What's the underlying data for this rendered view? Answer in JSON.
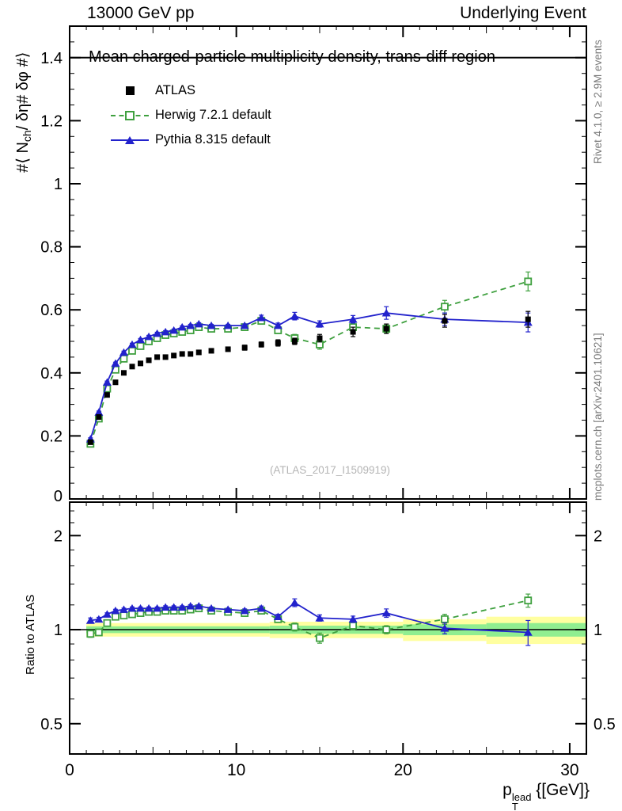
{
  "page": {
    "header_left": "13000 GeV pp",
    "header_right": "Underlying Event",
    "watermark": "(ATLAS_2017_I1509919)",
    "right_label_top": "Rivet 4.1.0, ≥ 2.9M events",
    "right_label_bottom": "mcplots.cern.ch [arXiv:2401.10621]"
  },
  "axes": {
    "y_label_main": {
      "pre": "#⟨ N",
      "sub": "ch",
      "post": "/ δη# δφ #⟩"
    },
    "y_label_ratio": "Ratio to ATLAS",
    "x_label": {
      "pre": "p",
      "sup": "lead",
      "sub": "T",
      "post": " {[GeV]}"
    }
  },
  "chart_data": {
    "type": "line",
    "title": "Mean charged-particle multiplicity density, trans-diff region",
    "xlabel": "p_T^lead {[GeV]}",
    "ylabel": "#⟨ N_ch / δη# δφ #⟩",
    "ratio_label": "Ratio to ATLAS",
    "xlim": [
      0,
      31
    ],
    "ylim": [
      0,
      1.5
    ],
    "ratio_ylim": [
      0.4,
      2.56
    ],
    "ratio_scale": "log",
    "grid": false,
    "legend_position": "top-left-inside",
    "xticks": {
      "values": [
        0,
        10,
        20,
        30
      ],
      "labels": [
        "0",
        "10",
        "20",
        "30"
      ]
    },
    "yticks": {
      "values": [
        0,
        0.2,
        0.4,
        0.6,
        0.8,
        1.0,
        1.2,
        1.4
      ],
      "labels": [
        "0",
        "0.2",
        "0.4",
        "0.6",
        "0.8",
        "1",
        "1.2",
        "1.4"
      ]
    },
    "ratio_yticks": {
      "values": [
        0.5,
        1,
        2
      ],
      "labels": [
        "0.5",
        "1",
        "2"
      ]
    },
    "x": [
      1.25,
      1.75,
      2.25,
      2.75,
      3.25,
      3.75,
      4.25,
      4.75,
      5.25,
      5.75,
      6.25,
      6.75,
      7.25,
      7.75,
      8.5,
      9.5,
      10.5,
      11.5,
      12.5,
      13.5,
      15,
      17,
      19,
      22.5,
      27.5
    ],
    "series": [
      {
        "name": "ATLAS",
        "color": "#000000",
        "marker": "filled-square",
        "line": "none",
        "values": [
          0.18,
          0.26,
          0.33,
          0.37,
          0.4,
          0.42,
          0.43,
          0.44,
          0.45,
          0.45,
          0.455,
          0.46,
          0.46,
          0.465,
          0.47,
          0.475,
          0.48,
          0.49,
          0.495,
          0.5,
          0.51,
          0.53,
          0.54,
          0.565,
          0.57
        ],
        "errors": [
          0.005,
          0.005,
          0.005,
          0.005,
          0.005,
          0.005,
          0.005,
          0.005,
          0.005,
          0.005,
          0.005,
          0.005,
          0.005,
          0.005,
          0.005,
          0.005,
          0.008,
          0.008,
          0.01,
          0.01,
          0.012,
          0.015,
          0.015,
          0.02,
          0.025
        ]
      },
      {
        "name": "Herwig 7.2.1 default",
        "color": "#3fa03f",
        "marker": "open-square",
        "line": "dashed",
        "values": [
          0.175,
          0.255,
          0.35,
          0.41,
          0.445,
          0.47,
          0.485,
          0.5,
          0.51,
          0.52,
          0.525,
          0.53,
          0.535,
          0.545,
          0.54,
          0.54,
          0.545,
          0.565,
          0.535,
          0.51,
          0.49,
          0.545,
          0.54,
          0.61,
          0.69
        ],
        "errors": [
          0.004,
          0.004,
          0.004,
          0.004,
          0.004,
          0.004,
          0.004,
          0.004,
          0.004,
          0.004,
          0.004,
          0.004,
          0.004,
          0.004,
          0.004,
          0.004,
          0.005,
          0.008,
          0.008,
          0.012,
          0.015,
          0.012,
          0.012,
          0.02,
          0.03
        ],
        "ratio": [
          0.97,
          0.98,
          1.05,
          1.1,
          1.11,
          1.12,
          1.13,
          1.14,
          1.14,
          1.15,
          1.15,
          1.15,
          1.16,
          1.17,
          1.15,
          1.14,
          1.13,
          1.15,
          1.08,
          1.02,
          0.94,
          1.03,
          1.0,
          1.08,
          1.24
        ],
        "ratio_errors": [
          0.025,
          0.02,
          0.015,
          0.012,
          0.012,
          0.012,
          0.012,
          0.012,
          0.012,
          0.012,
          0.012,
          0.012,
          0.012,
          0.012,
          0.012,
          0.012,
          0.012,
          0.02,
          0.02,
          0.03,
          0.035,
          0.03,
          0.03,
          0.04,
          0.06
        ]
      },
      {
        "name": "Pythia 8.315 default",
        "color": "#2222cc",
        "marker": "filled-triangle",
        "line": "solid",
        "values": [
          0.19,
          0.275,
          0.37,
          0.43,
          0.465,
          0.49,
          0.505,
          0.515,
          0.525,
          0.53,
          0.535,
          0.545,
          0.55,
          0.555,
          0.55,
          0.55,
          0.55,
          0.575,
          0.55,
          0.58,
          0.555,
          0.57,
          0.59,
          0.57,
          0.56
        ],
        "errors": [
          0.004,
          0.004,
          0.004,
          0.004,
          0.004,
          0.004,
          0.004,
          0.004,
          0.004,
          0.004,
          0.004,
          0.004,
          0.004,
          0.004,
          0.004,
          0.004,
          0.005,
          0.008,
          0.008,
          0.012,
          0.01,
          0.012,
          0.02,
          0.02,
          0.03
        ],
        "ratio": [
          1.07,
          1.08,
          1.12,
          1.15,
          1.16,
          1.17,
          1.17,
          1.17,
          1.17,
          1.18,
          1.18,
          1.18,
          1.19,
          1.19,
          1.17,
          1.16,
          1.15,
          1.17,
          1.1,
          1.22,
          1.09,
          1.08,
          1.13,
          1.01,
          0.98
        ],
        "ratio_errors": [
          0.02,
          0.015,
          0.012,
          0.012,
          0.012,
          0.012,
          0.012,
          0.012,
          0.012,
          0.012,
          0.012,
          0.012,
          0.012,
          0.012,
          0.012,
          0.012,
          0.015,
          0.02,
          0.02,
          0.035,
          0.025,
          0.025,
          0.035,
          0.04,
          0.09
        ]
      }
    ],
    "ratio_band": {
      "yellow_color": "#ffffa0",
      "green_color": "#90ee90",
      "yellow": [
        {
          "x0": 1,
          "x1": 12,
          "lo": 0.95,
          "hi": 1.05
        },
        {
          "x0": 12,
          "x1": 20,
          "lo": 0.94,
          "hi": 1.06
        },
        {
          "x0": 20,
          "x1": 25,
          "lo": 0.92,
          "hi": 1.08
        },
        {
          "x0": 25,
          "x1": 31,
          "lo": 0.9,
          "hi": 1.1
        }
      ],
      "green": [
        {
          "x0": 1,
          "x1": 12,
          "lo": 0.975,
          "hi": 1.025
        },
        {
          "x0": 12,
          "x1": 20,
          "lo": 0.97,
          "hi": 1.03
        },
        {
          "x0": 20,
          "x1": 25,
          "lo": 0.96,
          "hi": 1.04
        },
        {
          "x0": 25,
          "x1": 31,
          "lo": 0.95,
          "hi": 1.05
        }
      ]
    }
  }
}
